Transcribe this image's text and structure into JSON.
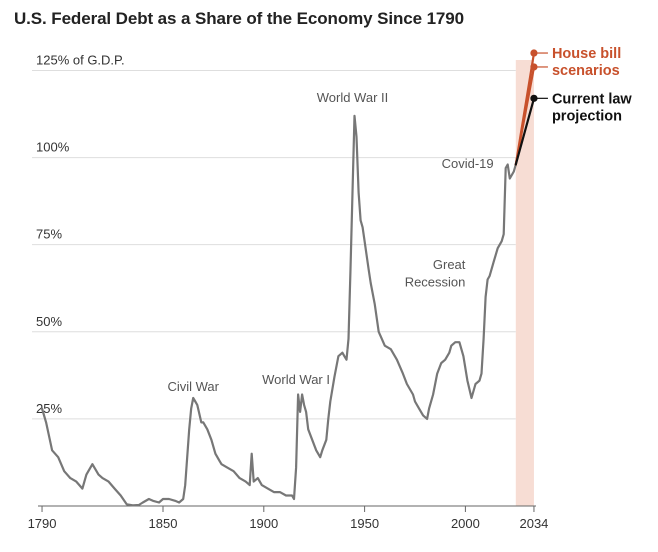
{
  "chart_data": {
    "type": "line",
    "title": "U.S. Federal Debt as a Share of the Economy Since 1790",
    "y_axis_top_label": "125% of G.D.P.",
    "y_tick_labels": [
      "25%",
      "50%",
      "75%",
      "100%"
    ],
    "y_ticks": [
      25,
      50,
      75,
      100,
      125
    ],
    "x_tick_labels": [
      "1790",
      "1850",
      "1900",
      "1950",
      "2000",
      "2034"
    ],
    "x_ticks": [
      1790,
      1850,
      1900,
      1950,
      2000,
      2034
    ],
    "xlim": [
      1788,
      2037
    ],
    "ylim": [
      0,
      128
    ],
    "grid": true,
    "projection_band": {
      "start": 2025,
      "end": 2034,
      "color": "#f7ddd4"
    },
    "series": [
      {
        "role": "historical",
        "color": "#777777",
        "x": [
          1790,
          1792,
          1795,
          1798,
          1801,
          1804,
          1807,
          1810,
          1812,
          1815,
          1818,
          1820,
          1823,
          1826,
          1829,
          1832,
          1835,
          1838,
          1840,
          1843,
          1845,
          1848,
          1850,
          1853,
          1856,
          1858,
          1860,
          1861,
          1862,
          1863,
          1864,
          1865,
          1866,
          1867,
          1869,
          1870,
          1872,
          1874,
          1876,
          1878,
          1879,
          1882,
          1885,
          1888,
          1891,
          1893,
          1894,
          1895,
          1897,
          1899,
          1902,
          1905,
          1908,
          1911,
          1914,
          1915,
          1916,
          1917,
          1918,
          1919,
          1920,
          1921,
          1922,
          1924,
          1926,
          1928,
          1929,
          1931,
          1932,
          1933,
          1935,
          1937,
          1939,
          1940,
          1941,
          1942,
          1943,
          1944,
          1945,
          1946,
          1947,
          1948,
          1949,
          1950,
          1952,
          1953,
          1955,
          1957,
          1960,
          1963,
          1966,
          1969,
          1971,
          1974,
          1975,
          1977,
          1979,
          1981,
          1982,
          1984,
          1986,
          1988,
          1990,
          1992,
          1993,
          1995,
          1997,
          1999,
          2001,
          2003,
          2005,
          2007,
          2008,
          2009,
          2010,
          2011,
          2012,
          2014,
          2016,
          2018,
          2019,
          2020,
          2021,
          2022,
          2023,
          2024,
          2025
        ],
        "values": [
          28,
          24,
          16,
          14,
          10,
          8,
          7,
          5,
          9,
          12,
          9,
          8,
          7,
          5,
          3,
          0.5,
          0.2,
          0.3,
          1,
          2,
          1.5,
          1,
          2,
          2,
          1.5,
          1,
          2,
          6,
          14,
          22,
          28,
          31,
          30,
          29,
          24,
          24,
          22,
          19,
          15,
          13,
          12,
          11,
          10,
          8,
          7,
          6,
          15,
          7,
          8,
          6,
          5,
          4,
          4,
          3,
          3,
          2,
          11,
          32,
          27,
          32,
          29,
          27,
          22,
          19,
          16,
          14,
          16,
          19,
          25,
          30,
          37,
          43,
          44,
          43,
          42,
          48,
          68,
          90,
          112,
          106,
          90,
          82,
          80,
          76,
          68,
          64,
          58,
          50,
          46,
          45,
          42,
          38,
          35,
          32,
          30,
          28,
          26,
          25,
          28,
          32,
          38,
          41,
          42,
          44,
          46,
          47,
          47,
          43,
          36,
          31,
          35,
          36,
          38,
          48,
          60,
          65,
          66,
          70,
          74,
          76,
          78,
          97,
          98,
          94,
          95,
          96,
          98
        ]
      },
      {
        "role": "scenario-house-bill-high",
        "color": "#c8512c",
        "x": [
          2025,
          2034
        ],
        "values": [
          98,
          130
        ]
      },
      {
        "role": "scenario-house-bill-low",
        "color": "#c8512c",
        "x": [
          2025,
          2034
        ],
        "values": [
          98,
          126
        ]
      },
      {
        "role": "current-law",
        "color": "#111111",
        "x": [
          2025,
          2034
        ],
        "values": [
          98,
          117
        ]
      }
    ],
    "annotations": [
      {
        "text": "Civil War",
        "x": 1865,
        "y": 33
      },
      {
        "text": "World War I",
        "x": 1916,
        "y": 35
      },
      {
        "text": "World War II",
        "x": 1944,
        "y": 116
      },
      {
        "text": "Covid-19",
        "x": 2014,
        "y": 97
      },
      {
        "text": "Great",
        "x": 2000,
        "y": 68
      },
      {
        "text": "Recession",
        "x": 2000,
        "y": 63
      }
    ],
    "legend": [
      {
        "lines": [
          "House bill",
          "scenarios"
        ],
        "color": "#c8512c"
      },
      {
        "lines": [
          "Current law",
          "projection"
        ],
        "color": "#111111"
      }
    ]
  }
}
